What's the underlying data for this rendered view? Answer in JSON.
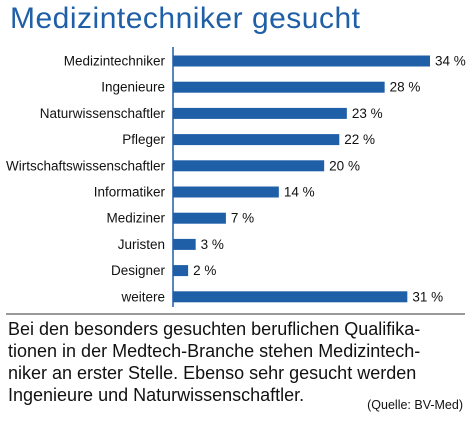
{
  "title": "Medizintechniker gesucht",
  "chart_data": {
    "type": "bar",
    "orientation": "horizontal",
    "categories": [
      "Medizintechniker",
      "Ingenieure",
      "Naturwissenschaftler",
      "Pfleger",
      "Wirtschaftswissenschaftler",
      "Informatiker",
      "Mediziner",
      "Juristen",
      "Designer",
      "weitere"
    ],
    "values": [
      34,
      28,
      23,
      22,
      20,
      14,
      7,
      3,
      2,
      31
    ],
    "value_labels": [
      "34 %",
      "28 %",
      "23 %",
      "22 %",
      "20 %",
      "14 %",
      "7 %",
      "3 %",
      "2 %",
      "31 %"
    ],
    "unit": "%",
    "xlim": [
      0,
      34
    ],
    "bar_color": "#1f5fa7",
    "grid": false
  },
  "caption": {
    "lines": [
      "Bei den besonders gesuchten beruflichen Qualifika-",
      "tionen in der Medtech-Branche stehen Medizintech-",
      "niker an erster Stelle. Ebenso sehr gesucht werden",
      "Ingenieure und Naturwissenschaftler."
    ],
    "source": "(Quelle: BV-Med)"
  }
}
